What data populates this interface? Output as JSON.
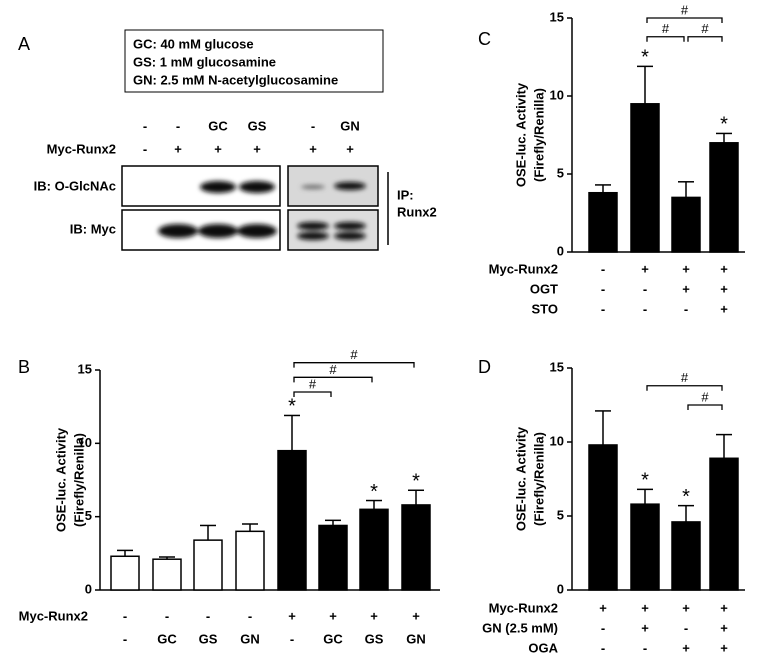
{
  "panel_a": {
    "label": "A",
    "legend": [
      "GC: 40 mM glucose",
      "GS: 1 mM glucosamine",
      "GN: 2.5 mM N-acetylglucosamine"
    ],
    "treatment_row": [
      "-",
      "-",
      "GC",
      "GS",
      "-",
      "GN"
    ],
    "runx_row": {
      "label": "Myc-Runx2",
      "values": [
        "-",
        "+",
        "+",
        "+",
        "+",
        "+"
      ]
    },
    "blots": [
      "IB: O-GlcNAc",
      "IB: Myc"
    ],
    "ip": [
      "IP:",
      "Runx2"
    ]
  },
  "chart_data": [
    {
      "type": "bar",
      "panel": "B",
      "ylabel": [
        "OSE-luc. Activity",
        "(Firefly/Renilla)"
      ],
      "ylim": [
        0,
        15
      ],
      "yticks": [
        0,
        5,
        10,
        15
      ],
      "values": [
        2.3,
        2.1,
        3.4,
        4.0,
        9.5,
        4.4,
        5.5,
        5.8
      ],
      "errors": [
        0.4,
        0.15,
        1.0,
        0.5,
        2.4,
        0.35,
        0.6,
        1.0
      ],
      "colors": [
        "#ffffff",
        "#ffffff",
        "#ffffff",
        "#ffffff",
        "#000000",
        "#000000",
        "#000000",
        "#000000"
      ],
      "asterisks": [
        null,
        null,
        null,
        null,
        "*",
        null,
        "*",
        "*"
      ],
      "brackets": [
        {
          "from": 4,
          "to": 5,
          "y": 13.5,
          "text": "#"
        },
        {
          "from": 4,
          "to": 6,
          "y": 14.5,
          "text": "#"
        },
        {
          "from": 4,
          "to": 7,
          "y": 15.5,
          "text": "#"
        }
      ],
      "conditions": [
        {
          "label": "Myc-Runx2",
          "values": [
            "-",
            "-",
            "-",
            "-",
            "+",
            "+",
            "+",
            "+"
          ]
        },
        {
          "label": null,
          "values": [
            "-",
            "GC",
            "GS",
            "GN",
            "-",
            "GC",
            "GS",
            "GN"
          ]
        }
      ]
    },
    {
      "type": "bar",
      "panel": "C",
      "ylabel": [
        "OSE-luc. Activity",
        "(Firefly/Renilla)"
      ],
      "ylim": [
        0,
        15
      ],
      "yticks": [
        0,
        5,
        10,
        15
      ],
      "values": [
        3.8,
        9.5,
        3.5,
        7.0
      ],
      "errors": [
        0.5,
        2.4,
        1.0,
        0.6
      ],
      "colors": [
        "#000000",
        "#000000",
        "#000000",
        "#000000"
      ],
      "asterisks": [
        null,
        "*",
        null,
        "*"
      ],
      "brackets": [
        {
          "from": 1,
          "to": 3,
          "y": 15,
          "text": "#"
        },
        {
          "from": 1,
          "to": 2,
          "y": 13.8,
          "text": "#"
        },
        {
          "from": 2,
          "to": 3,
          "y": 13.8,
          "text": "#"
        }
      ],
      "conditions": [
        {
          "label": "Myc-Runx2",
          "values": [
            "-",
            "+",
            "+",
            "+"
          ]
        },
        {
          "label": "OGT",
          "values": [
            "-",
            "-",
            "+",
            "+"
          ]
        },
        {
          "label": "STO",
          "values": [
            "-",
            "-",
            "-",
            "+"
          ]
        }
      ]
    },
    {
      "type": "bar",
      "panel": "D",
      "ylabel": [
        "OSE-luc. Activity",
        "(Firefly/Renilla)"
      ],
      "ylim": [
        0,
        15
      ],
      "yticks": [
        0,
        5,
        10,
        15
      ],
      "values": [
        9.8,
        5.8,
        4.6,
        8.9
      ],
      "errors": [
        2.3,
        1.0,
        1.1,
        1.6
      ],
      "colors": [
        "#000000",
        "#000000",
        "#000000",
        "#000000"
      ],
      "asterisks": [
        null,
        "*",
        "*",
        null
      ],
      "brackets": [
        {
          "from": 1,
          "to": 3,
          "y": 13.8,
          "text": "#"
        },
        {
          "from": 2,
          "to": 3,
          "y": 12.5,
          "text": "#"
        }
      ],
      "conditions": [
        {
          "label": "Myc-Runx2",
          "values": [
            "+",
            "+",
            "+",
            "+"
          ]
        },
        {
          "label": "GN (2.5 mM)",
          "values": [
            "-",
            "+",
            "-",
            "+"
          ]
        },
        {
          "label": "OGA",
          "values": [
            "-",
            "-",
            "+",
            "+"
          ]
        }
      ]
    }
  ]
}
